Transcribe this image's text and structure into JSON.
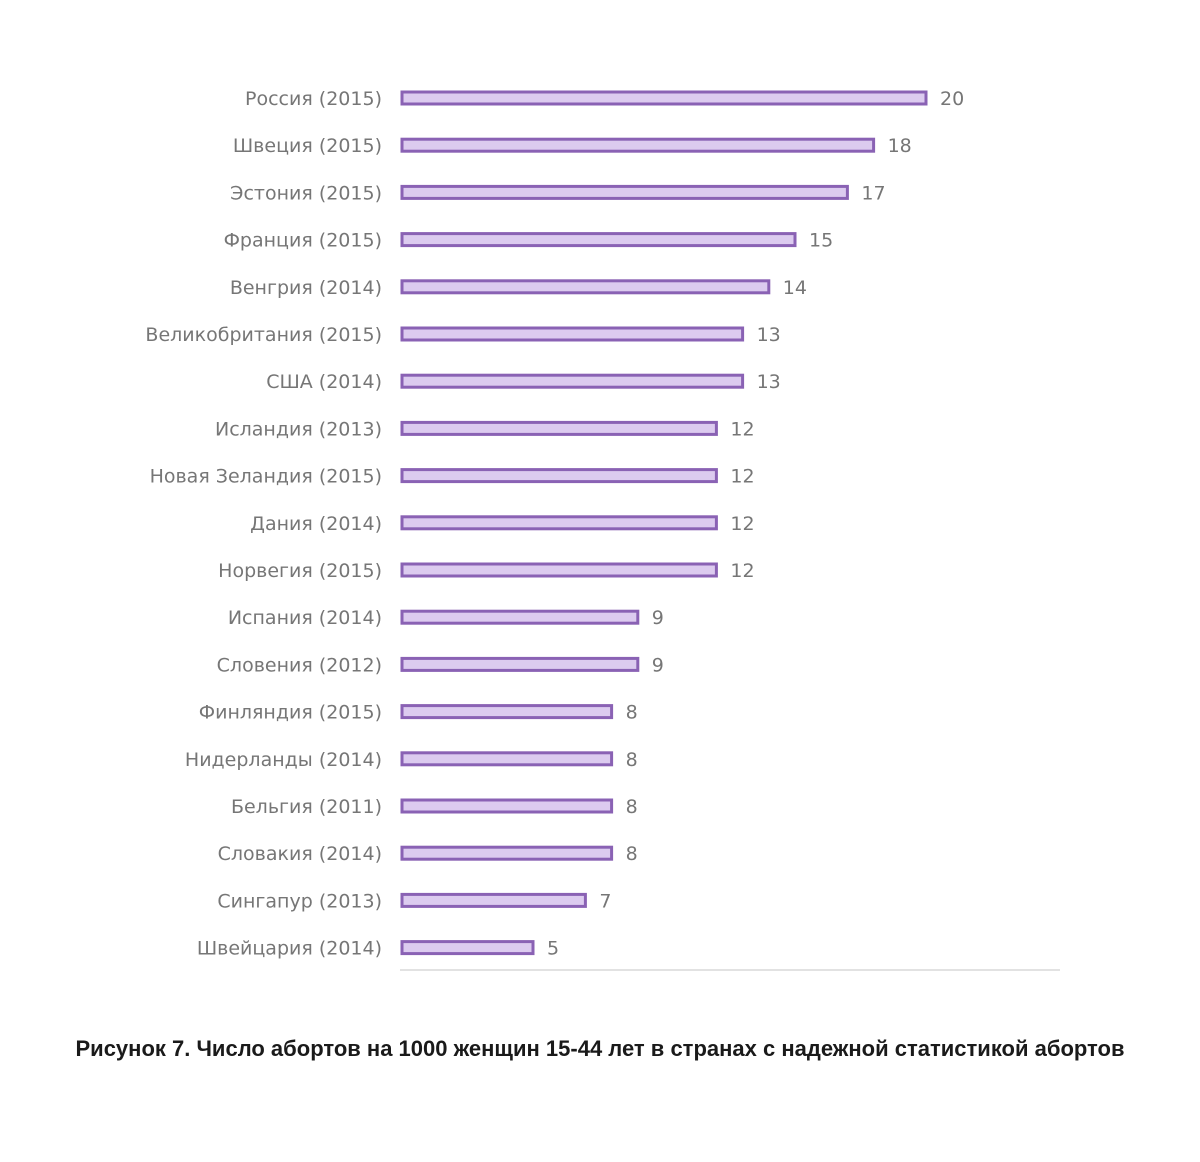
{
  "chart_data": {
    "type": "bar",
    "orientation": "horizontal",
    "categories": [
      "Россия (2015)",
      "Швеция (2015)",
      "Эстония (2015)",
      "Франция (2015)",
      "Венгрия (2014)",
      "Великобритания (2015)",
      "США (2014)",
      "Исландия (2013)",
      "Новая Зеландия (2015)",
      "Дания (2014)",
      "Норвегия (2015)",
      "Испания (2014)",
      "Словения (2012)",
      "Финляндия (2015)",
      "Нидерланды (2014)",
      "Бельгия (2011)",
      "Словакия (2014)",
      "Сингапур (2013)",
      "Швейцария (2014)"
    ],
    "values": [
      20,
      18,
      17,
      15,
      14,
      13,
      13,
      12,
      12,
      12,
      12,
      9,
      9,
      8,
      8,
      8,
      8,
      7,
      5
    ],
    "xlim": [
      0,
      20
    ],
    "grid": false,
    "legend": "none",
    "data_labels": true,
    "colors": {
      "bar_fill": "#dccbef",
      "bar_stroke": "#8a62b4",
      "text": "#767676"
    }
  },
  "caption": "Рисунок 7. Число абортов на 1000 женщин 15-44 лет в странах с надежной статистикой абортов"
}
